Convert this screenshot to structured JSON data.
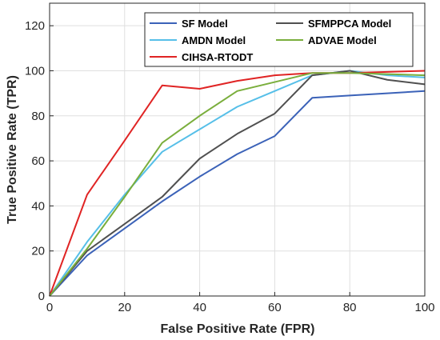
{
  "chart_data": {
    "type": "line",
    "xlabel": "False Positive Rate (FPR)",
    "ylabel": "True Positive Rate (TPR)",
    "xlim": [
      0,
      100
    ],
    "ylim": [
      0,
      130
    ],
    "x_ticks": [
      0,
      20,
      40,
      60,
      80,
      100
    ],
    "y_ticks": [
      0,
      20,
      40,
      60,
      80,
      100,
      120
    ],
    "grid": true,
    "legend_position": "top-right",
    "series": [
      {
        "name": "SF Model",
        "color": "#3b62b8",
        "x": [
          0,
          10,
          20,
          30,
          40,
          50,
          60,
          70,
          80,
          90,
          100
        ],
        "y": [
          0,
          18,
          30,
          42,
          53,
          63,
          71,
          88,
          89,
          90,
          91
        ]
      },
      {
        "name": "AMDN Model",
        "color": "#56bfe8",
        "x": [
          0,
          10,
          20,
          30,
          40,
          50,
          60,
          70,
          80,
          90,
          100
        ],
        "y": [
          0,
          24,
          45,
          64,
          74,
          84,
          91,
          98,
          100,
          98,
          97
        ]
      },
      {
        "name": "CIHSA-RTODT",
        "color": "#e02424",
        "x": [
          0,
          10,
          20,
          30,
          40,
          50,
          60,
          70,
          80,
          90,
          100
        ],
        "y": [
          0,
          45,
          69,
          93.5,
          92,
          95.5,
          98,
          99,
          99,
          99.5,
          100
        ]
      },
      {
        "name": "SFMPPCA Model",
        "color": "#505050",
        "x": [
          0,
          10,
          20,
          30,
          40,
          50,
          60,
          70,
          80,
          90,
          100
        ],
        "y": [
          0,
          20,
          32,
          44,
          61,
          72,
          81,
          98,
          100,
          96,
          94
        ]
      },
      {
        "name": "ADVAE Model",
        "color": "#7aae3c",
        "x": [
          0,
          10,
          20,
          30,
          40,
          50,
          60,
          70,
          80,
          90,
          100
        ],
        "y": [
          0,
          21,
          44,
          68,
          80,
          91,
          95,
          99,
          99,
          98.5,
          98
        ]
      }
    ]
  }
}
